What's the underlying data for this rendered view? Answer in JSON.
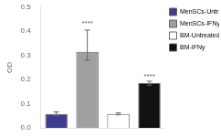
{
  "chart_data": {
    "type": "bar",
    "categories": [
      "MenSCs-Untreated",
      "MenSCs-IFNy",
      "BM-Untreated",
      "BM-IFNy"
    ],
    "values": [
      0.058,
      0.315,
      0.058,
      0.185
    ],
    "errors_upper": [
      0.008,
      0.09,
      0.004,
      0.008
    ],
    "errors_lower": [
      0.008,
      0.035,
      0.004,
      0.008
    ],
    "colors": [
      "#3d3d8f",
      "#a0a0a0",
      "#ffffff",
      "#111111"
    ],
    "annotations": [
      {
        "text": "****",
        "category": "MenSCs-IFNy",
        "y": 0.415
      },
      {
        "text": "****",
        "category": "BM-IFNy",
        "y": 0.198
      }
    ],
    "ylabel": "OD",
    "ylim": [
      0.0,
      0.5
    ],
    "yticks": [
      {
        "value": 0.0,
        "label": "0.0"
      },
      0.1,
      0.2,
      0.3,
      0.4,
      0.5
    ],
    "grid": false,
    "legend": "upper right",
    "tick_labels": "y"
  }
}
